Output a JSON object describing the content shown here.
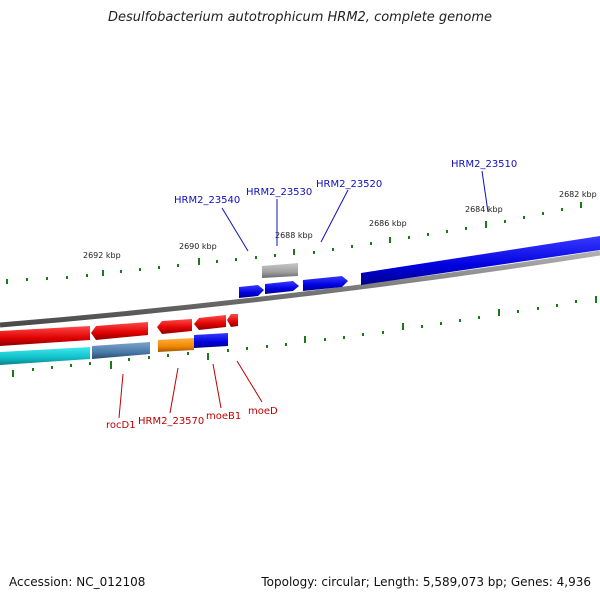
{
  "title": "Desulfobacterium autotrophicum HRM2, complete genome",
  "footer": {
    "accession": "Accession: NC_012108",
    "topology": "Topology: circular; Length: 5,589,073 bp; Genes: 4,936"
  },
  "scale_labels": [
    "2692 kbp",
    "2690 kbp",
    "2688 kbp",
    "2686 kbp",
    "2684 kbp",
    "2682 kbp"
  ],
  "gene_labels": {
    "top": [
      "HRM2_23540",
      "HRM2_23530",
      "HRM2_23520",
      "HRM2_23510"
    ],
    "bottom": [
      "rocD1",
      "HRM2_23570",
      "moeB1",
      "moeD"
    ]
  },
  "colors": {
    "forward_strand": "#0000ee",
    "reverse_strand": "#ee0000",
    "label_blue": "#1010c0",
    "label_red": "#c00000",
    "genome_line": "#7a7a7a",
    "tick": "#1a7a1a",
    "cyan_track": "#10c8d0",
    "steel_track": "#4a7aa8",
    "orange_track": "#f08800",
    "gray_gene": "#a0a0a0"
  }
}
